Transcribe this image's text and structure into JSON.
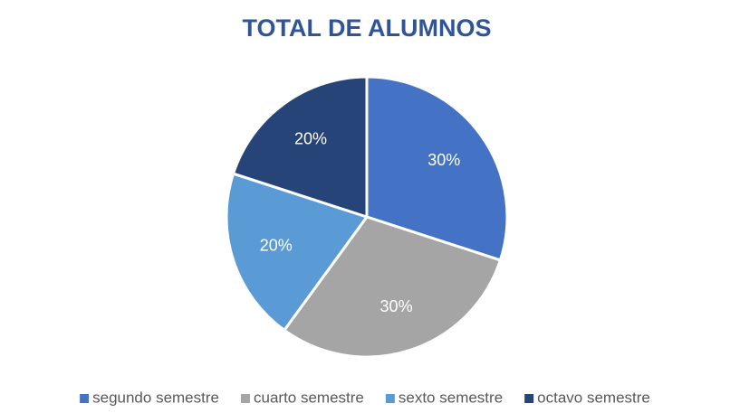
{
  "chart_data": {
    "type": "pie",
    "title": "TOTAL DE ALUMNOS",
    "categories": [
      "segundo semestre",
      "cuarto semestre",
      "sexto semestre",
      "octavo semestre"
    ],
    "values": [
      30,
      30,
      20,
      20
    ],
    "value_labels": [
      "30%",
      "30%",
      "20%",
      "20%"
    ],
    "colors": [
      "#4472c4",
      "#a5a5a5",
      "#5b9bd5",
      "#264478"
    ],
    "legend": "bottom"
  }
}
